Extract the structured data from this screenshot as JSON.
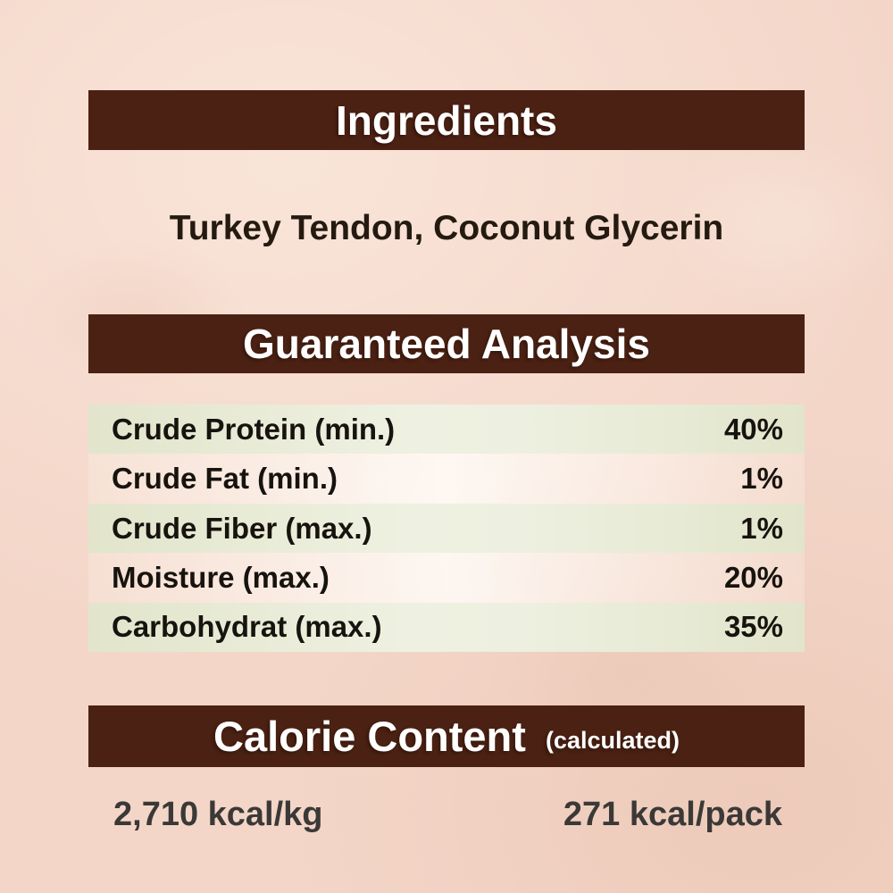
{
  "colors": {
    "header_bar": "#4a2113",
    "header_text": "#ffffff",
    "background": "#f3d6c8",
    "stripe_green": "#e4e8d0",
    "body_text": "#241a10",
    "calorie_text": "#3b3937"
  },
  "sections": {
    "ingredients": {
      "title": "Ingredients",
      "content": "Turkey Tendon, Coconut Glycerin"
    },
    "guaranteed_analysis": {
      "title": "Guaranteed Analysis",
      "rows": [
        {
          "label": "Crude Protein (min.)",
          "value": "40%"
        },
        {
          "label": "Crude Fat (min.)",
          "value": "1%"
        },
        {
          "label": "Crude Fiber (max.)",
          "value": "1%"
        },
        {
          "label": "Moisture (max.)",
          "value": "20%"
        },
        {
          "label": "Carbohydrat (max.)",
          "value": "35%"
        }
      ]
    },
    "calorie_content": {
      "title": "Calorie Content",
      "subtitle": "(calculated)",
      "per_kg": "2,710 kcal/kg",
      "per_pack": "271 kcal/pack"
    }
  }
}
